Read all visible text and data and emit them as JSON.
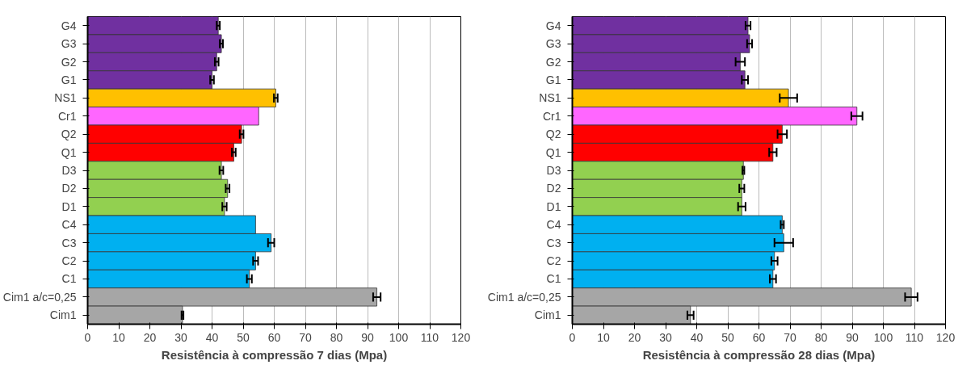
{
  "chart_data": [
    {
      "type": "bar",
      "orientation": "horizontal",
      "xlabel": "Resistência à compressão 7 dias (Mpa)",
      "categories": [
        "G4",
        "G3",
        "G2",
        "G1",
        "NS1",
        "Cr1",
        "Q2",
        "Q1",
        "D3",
        "D2",
        "D1",
        "C4",
        "C3",
        "C2",
        "C1",
        "Cim1 a/c=0,25",
        "Cim1"
      ],
      "values": [
        42,
        43,
        41.5,
        40,
        60.5,
        55,
        49.5,
        47,
        43,
        45,
        44,
        54,
        59,
        54,
        52,
        93,
        30.5
      ],
      "errors": [
        0.5,
        0.5,
        0.6,
        0.6,
        0.6,
        null,
        0.6,
        0.6,
        0.6,
        0.6,
        0.7,
        null,
        1,
        0.8,
        0.8,
        1.2,
        0.3
      ],
      "colors": [
        "#7030a0",
        "#7030a0",
        "#7030a0",
        "#7030a0",
        "#ffc000",
        "#ff66ff",
        "#ff0000",
        "#ff0000",
        "#92d050",
        "#92d050",
        "#92d050",
        "#00b0f0",
        "#00b0f0",
        "#00b0f0",
        "#00b0f0",
        "#a6a6a6",
        "#a6a6a6"
      ],
      "xlim": [
        0,
        120
      ],
      "xticks": [
        0,
        10,
        20,
        30,
        40,
        50,
        60,
        70,
        80,
        90,
        100,
        110,
        120
      ],
      "grid": "x"
    },
    {
      "type": "bar",
      "orientation": "horizontal",
      "xlabel": "Resistência à compressão 28 dias (Mpa)",
      "categories": [
        "G4",
        "G3",
        "G2",
        "G1",
        "NS1",
        "Cr1",
        "Q2",
        "Q1",
        "D3",
        "D2",
        "D1",
        "C4",
        "C3",
        "C2",
        "C1",
        "Cim1 a/c=0,25",
        "Cim1"
      ],
      "values": [
        56.5,
        57,
        54,
        55.5,
        69.5,
        91.5,
        67.5,
        64.5,
        55,
        54.5,
        54.5,
        67.5,
        68,
        65,
        64.5,
        109,
        38
      ],
      "errors": [
        0.8,
        0.8,
        1.5,
        1,
        2.8,
        1.8,
        1.5,
        1.2,
        0.3,
        0.8,
        1.2,
        0.5,
        3,
        1,
        1,
        2,
        1
      ],
      "colors": [
        "#7030a0",
        "#7030a0",
        "#7030a0",
        "#7030a0",
        "#ffc000",
        "#ff66ff",
        "#ff0000",
        "#ff0000",
        "#92d050",
        "#92d050",
        "#92d050",
        "#00b0f0",
        "#00b0f0",
        "#00b0f0",
        "#00b0f0",
        "#a6a6a6",
        "#a6a6a6"
      ],
      "xlim": [
        0,
        120
      ],
      "xticks": [
        0,
        10,
        20,
        30,
        40,
        50,
        60,
        70,
        80,
        90,
        100,
        110,
        120
      ],
      "grid": "x"
    }
  ]
}
